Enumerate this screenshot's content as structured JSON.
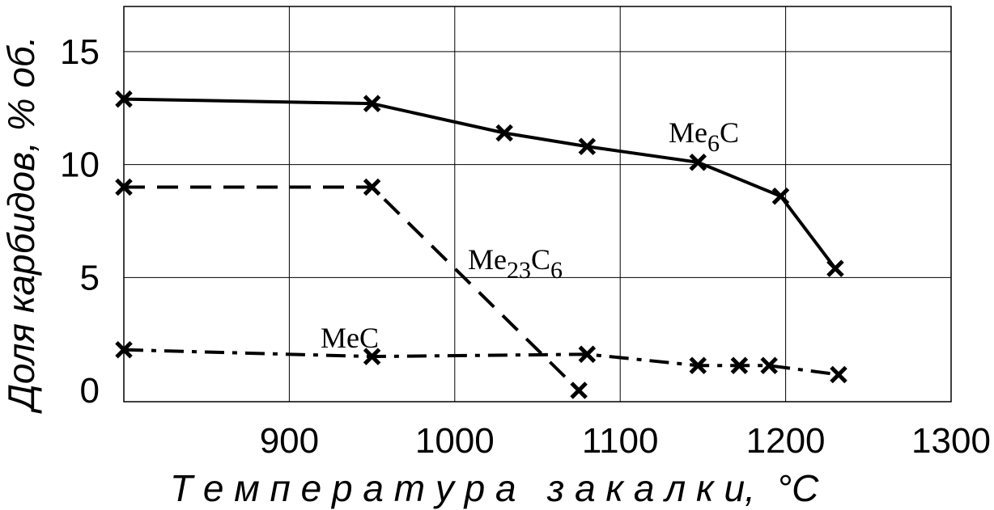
{
  "chart_data": {
    "type": "line",
    "xlabel": "Т е м п е р а т у р а   з а к а л к и,",
    "xlabel_unit": "°C",
    "ylabel": "Доля карбидов, % об.",
    "xlim": [
      800,
      1300
    ],
    "ylim": [
      -0.5,
      17
    ],
    "x_ticks": [
      900,
      1000,
      1100,
      1200,
      1300
    ],
    "y_ticks": [
      0,
      5,
      10,
      15
    ],
    "grid": true,
    "series": [
      {
        "name": "Me6C",
        "label": {
          "base": "Me",
          "sub": "6",
          "tail": "C"
        },
        "style": "solid",
        "points": [
          [
            800,
            12.9
          ],
          [
            950,
            12.7
          ],
          [
            1030,
            11.4
          ],
          [
            1080,
            10.8
          ],
          [
            1147,
            10.1
          ],
          [
            1197,
            8.6
          ],
          [
            1230,
            5.4
          ]
        ]
      },
      {
        "name": "Me23C6",
        "label": {
          "base": "Me",
          "sub": "23",
          "tail": "C",
          "sub2": "6"
        },
        "style": "dashed",
        "points": [
          [
            800,
            9.0
          ],
          [
            950,
            9.0
          ],
          [
            1075,
            0.0
          ]
        ]
      },
      {
        "name": "MeC",
        "label": {
          "base": "MeC"
        },
        "style": "dashdot",
        "points": [
          [
            800,
            1.8
          ],
          [
            950,
            1.5
          ],
          [
            1080,
            1.6
          ],
          [
            1147,
            1.1
          ],
          [
            1172,
            1.1
          ],
          [
            1190,
            1.1
          ],
          [
            1232,
            0.7
          ]
        ]
      }
    ]
  }
}
